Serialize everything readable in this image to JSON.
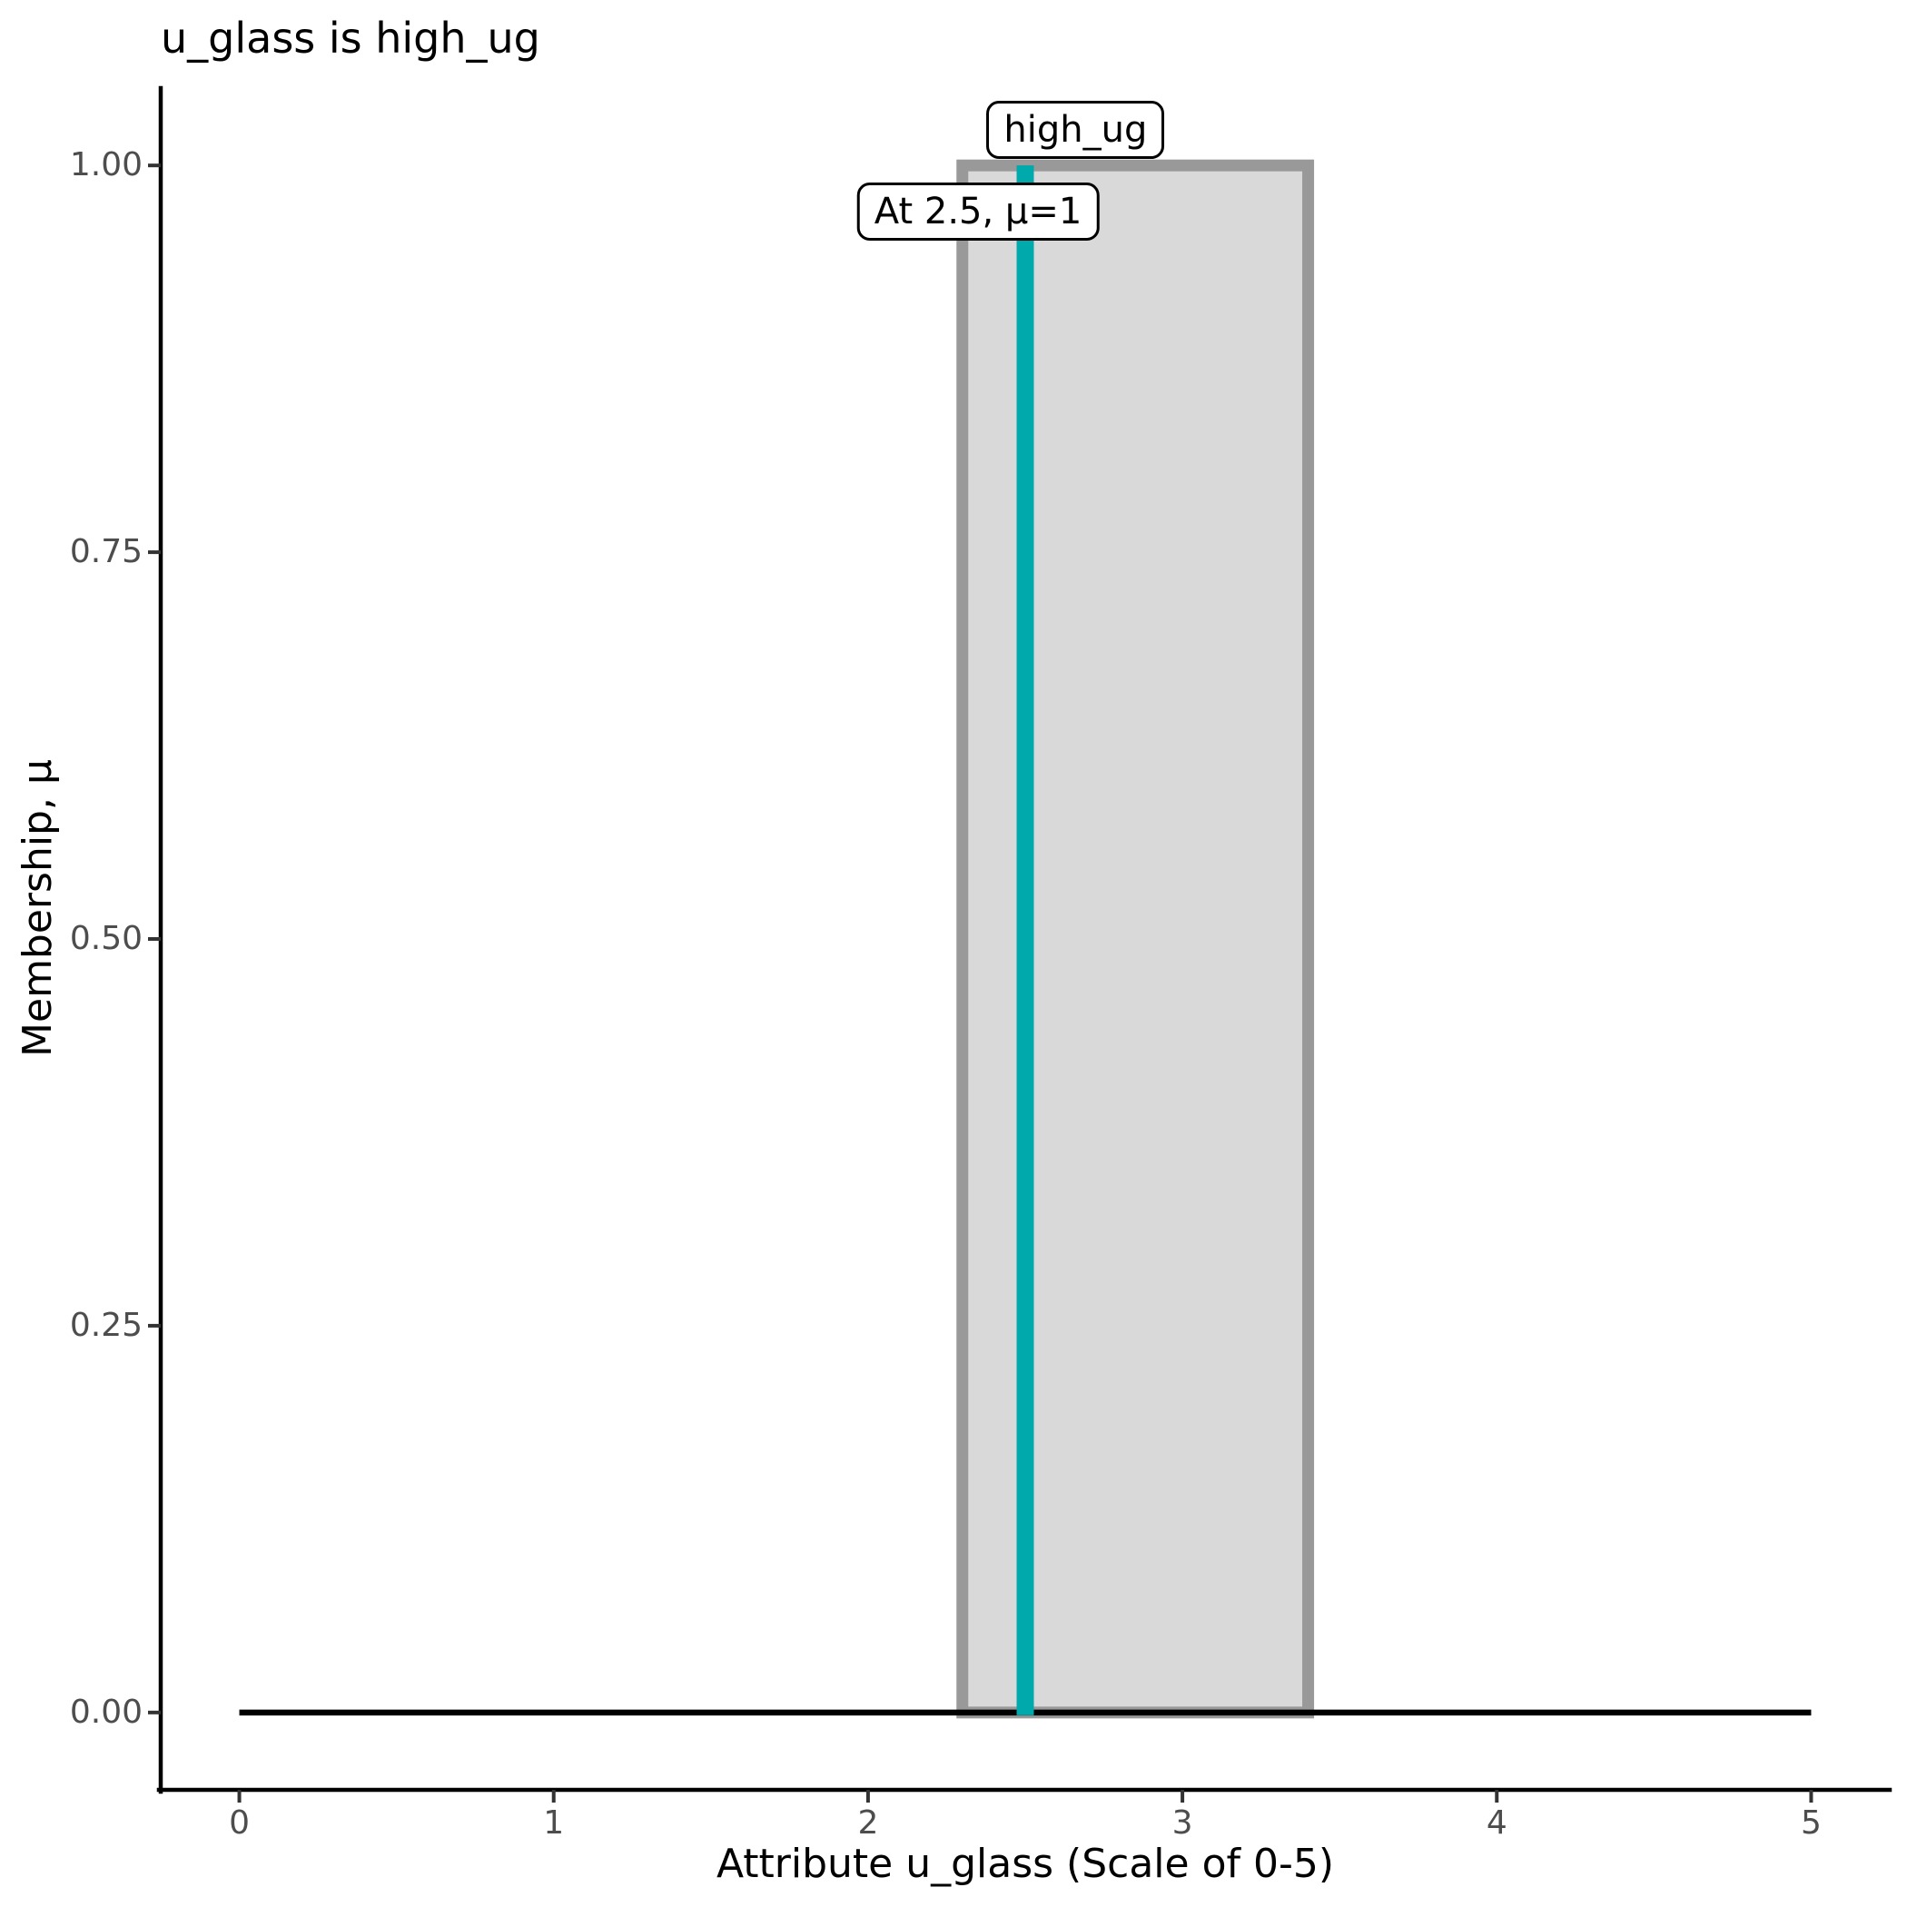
{
  "title": "u_glass is high_ug",
  "axes": {
    "x": {
      "label": "Attribute u_glass (Scale of 0-5)",
      "tick_labels": [
        "0",
        "1",
        "2",
        "3",
        "4",
        "5"
      ],
      "tick_values": [
        0,
        1,
        2,
        3,
        4,
        5
      ]
    },
    "y": {
      "label": "Membership, μ",
      "tick_labels": [
        "0.00",
        "0.25",
        "0.50",
        "0.75",
        "1.00"
      ],
      "tick_values": [
        0,
        0.25,
        0.5,
        0.75,
        1
      ]
    }
  },
  "chart_data": {
    "type": "area",
    "title": "u_glass is high_ug",
    "xlabel": "Attribute u_glass (Scale of 0-5)",
    "ylabel": "Membership, μ",
    "xlim": [
      0,
      5
    ],
    "ylim": [
      0,
      1
    ],
    "grid": false,
    "legend_position": "none",
    "membership_function": {
      "name": "high_ug",
      "shape": "rectangle",
      "support": [
        2.3,
        3.4
      ],
      "mu_inside": 1,
      "mu_outside": 0,
      "points_x": [
        2.3,
        2.3,
        3.4,
        3.4
      ],
      "points_mu": [
        0,
        1,
        1,
        0
      ]
    },
    "baseline": {
      "x": [
        0,
        5
      ],
      "mu": 0
    },
    "marker": {
      "x": 2.5,
      "mu": 1
    },
    "annotations": [
      {
        "id": "set-label",
        "text": "high_ug",
        "x": 2.66,
        "y": 1.023
      },
      {
        "id": "marker-label",
        "text": "At 2.5, μ=1",
        "x": 2.35,
        "y": 0.97
      }
    ]
  },
  "colors": {
    "marker_line": "#00a9ab",
    "mf_fill": "#d9d9d9",
    "mf_border": "#999999",
    "baseline": "#000000",
    "axis_line": "#000000",
    "tick_mark": "#333333",
    "tick_label": "#4d4d4d",
    "text": "#000000",
    "annotation_bg": "#ffffff",
    "annotation_border": "#000000",
    "background": "#ffffff"
  }
}
